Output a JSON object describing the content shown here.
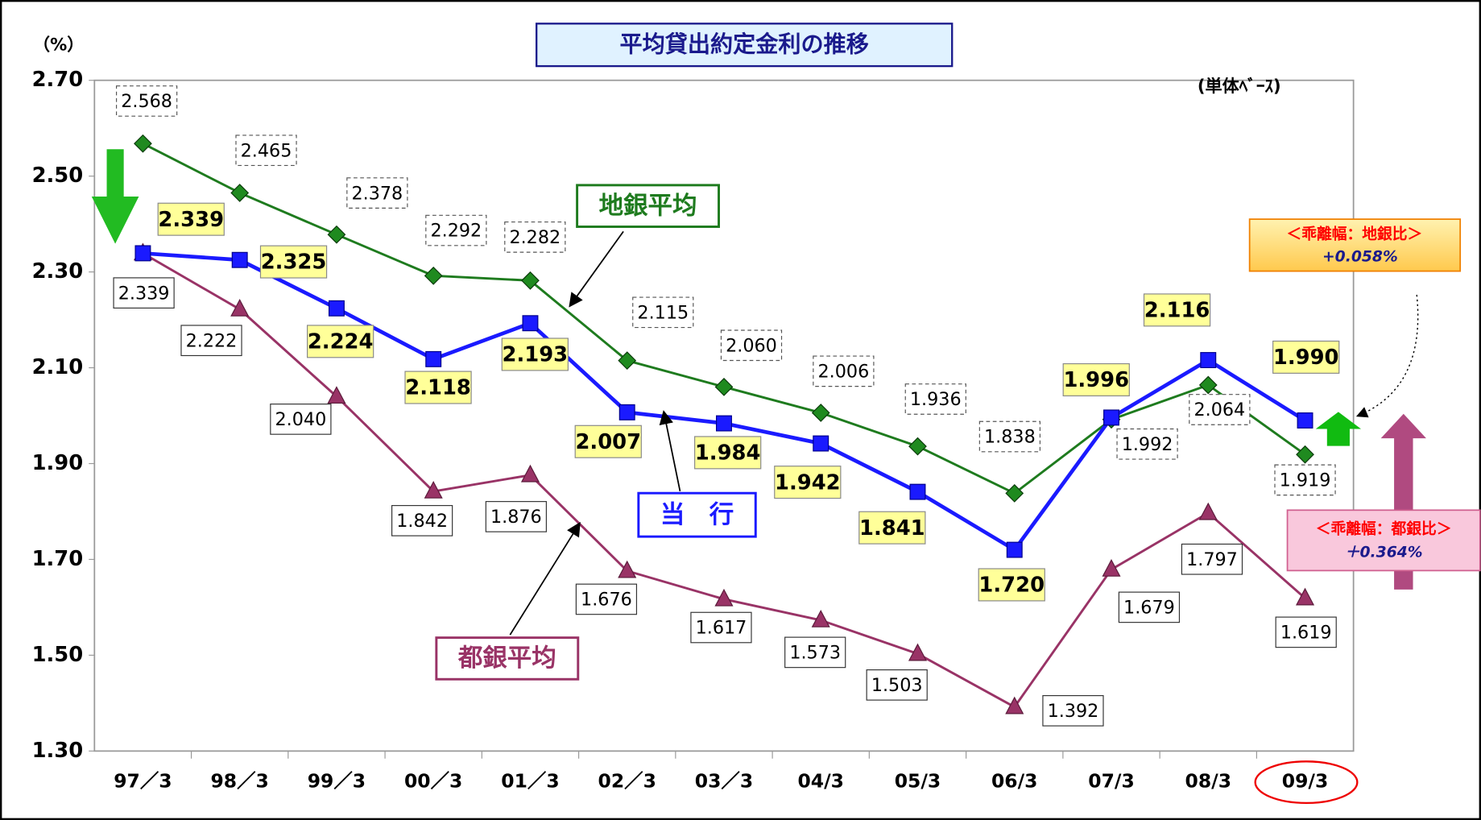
{
  "chart_data": {
    "type": "line",
    "title": "平均貸出約定金利の推移",
    "y_unit": "（%）",
    "subtitle": "(単体ﾍﾞｰｽ)",
    "categories": [
      "97／3",
      "98／3",
      "99／3",
      "00／3",
      "01／3",
      "02／3",
      "03／3",
      "04/3",
      "05/3",
      "06/3",
      "07/3",
      "08/3",
      "09/3"
    ],
    "ylim": [
      1.3,
      2.7
    ],
    "yticks": [
      {
        "value": 1.3,
        "label": "1.30"
      },
      {
        "value": 1.5,
        "label": "1.50"
      },
      {
        "value": 1.7,
        "label": "1.70"
      },
      {
        "value": 1.9,
        "label": "1.90"
      },
      {
        "value": 2.1,
        "label": "2.10"
      },
      {
        "value": 2.3,
        "label": "2.30"
      },
      {
        "value": 2.5,
        "label": "2.50"
      },
      {
        "value": 2.7,
        "label": "2.70"
      }
    ],
    "grid": false,
    "series": [
      {
        "name": "当　行",
        "color": "#1a1aff",
        "values": [
          2.339,
          2.325,
          2.224,
          2.118,
          2.193,
          2.007,
          1.984,
          1.942,
          1.841,
          1.72,
          1.996,
          2.116,
          1.99
        ],
        "value_labels": [
          "2.339",
          "2.325",
          "2.224",
          "2.118",
          "2.193",
          "2.007",
          "1.984",
          "1.942",
          "1.841",
          "1.720",
          "1.996",
          "2.116",
          "1.990"
        ]
      },
      {
        "name": "地銀平均",
        "color": "#1e7b1e",
        "values": [
          2.568,
          2.465,
          2.378,
          2.292,
          2.282,
          2.115,
          2.06,
          2.006,
          1.936,
          1.838,
          1.992,
          2.064,
          1.919
        ],
        "value_labels": [
          "2.568",
          "2.465",
          "2.378",
          "2.292",
          "2.282",
          "2.115",
          "2.060",
          "2.006",
          "1.936",
          "1.838",
          "1.992",
          "2.064",
          "1.919"
        ]
      },
      {
        "name": "都銀平均",
        "color": "#993366",
        "values": [
          2.339,
          2.222,
          2.04,
          1.842,
          1.876,
          1.676,
          1.617,
          1.573,
          1.503,
          1.392,
          1.679,
          1.797,
          1.619
        ],
        "value_labels": [
          "2.339",
          "2.222",
          "2.040",
          "1.842",
          "1.876",
          "1.676",
          "1.617",
          "1.573",
          "1.503",
          "1.392",
          "1.679",
          "1.797",
          "1.619"
        ]
      }
    ],
    "annotations": [
      {
        "text": "＜乖離幅：地銀比＞",
        "value": "+0.058%"
      },
      {
        "text": "＜乖離幅：都銀比＞",
        "value": "＋0.364%"
      }
    ]
  }
}
